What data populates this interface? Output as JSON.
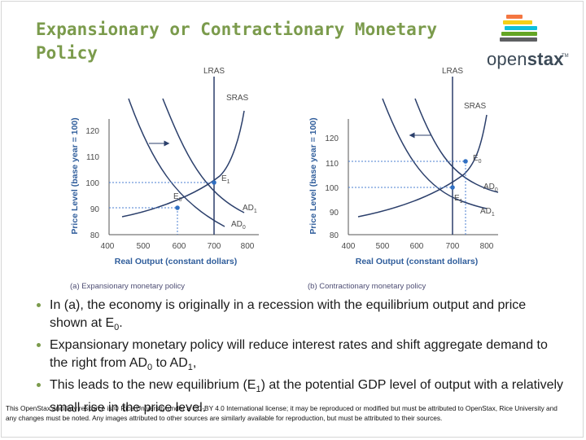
{
  "slide": {
    "title": "Expansionary or Contractionary Monetary Policy",
    "footer": "This OpenStax ancillary resource is © Rice University under a CC-BY 4.0 International license; it may be reproduced or modified but must be attributed to OpenStax, Rice University and any changes must be noted.  Any images attributed to other sources are similarly available for reproduction, but must be attributed to their sources.",
    "logo": {
      "icon": "openstax-book-stack-icon",
      "text_light": "open",
      "text_bold": "stax",
      "tm": "TM",
      "bar_colors": [
        "#f47641",
        "#f4d019",
        "#0dc0dc",
        "#63a524",
        "#5e6062"
      ]
    },
    "bullets": [
      {
        "text": "In (a), the economy is originally in a recession with the equilibrium output and price shown at E",
        "sub": "0",
        "after": "."
      },
      {
        "text": "Expansionary monetary policy will reduce interest rates and shift aggregate demand to the right from AD",
        "sub": "0",
        "mid": " to AD",
        "sub2": "1",
        "after": ","
      },
      {
        "text": "This leads to the new equilibrium (E",
        "sub": "1",
        "after": ") at the potential GDP level of output with a relatively small rise in the price level."
      }
    ],
    "bullet_color": "#7b9b4c"
  },
  "diagrams": [
    {
      "caption": "(a)  Expansionary monetary policy",
      "xlabel": "Real Output (constant dollars)",
      "ylabel": "Price Level (base year = 100)",
      "x_ticks": [
        "400",
        "500",
        "600",
        "700",
        "800"
      ],
      "y_ticks": [
        "80",
        "90",
        "100",
        "110",
        "120"
      ],
      "curves": {
        "lras": "LRAS",
        "sras": "SRAS",
        "ad0": "AD",
        "ad0_sub": "0",
        "ad1": "AD",
        "ad1_sub": "1"
      },
      "points": {
        "e0": "E",
        "e0_sub": "0",
        "e1": "E",
        "e1_sub": "1"
      },
      "arrow_direction": "right"
    },
    {
      "caption": "(b)  Contractionary monetary policy",
      "xlabel": "Real Output (constant dollars)",
      "ylabel": "Price Level (base year = 100)",
      "x_ticks": [
        "400",
        "500",
        "600",
        "700",
        "800"
      ],
      "y_ticks": [
        "80",
        "90",
        "100",
        "110",
        "120"
      ],
      "curves": {
        "lras": "LRAS",
        "sras": "SRAS",
        "ad0": "AD",
        "ad0_sub": "0",
        "ad1": "AD",
        "ad1_sub": "1"
      },
      "points": {
        "e0": "E",
        "e0_sub": "0",
        "e1": "E",
        "e1_sub": "1"
      },
      "arrow_direction": "left"
    }
  ],
  "colors": {
    "axis_title": "#2f5d9b",
    "curve": "#2b3f6b",
    "arrow": "#2b3f6b",
    "point": "#2f6fc2",
    "guide": "#4b7fd1",
    "title": "#7b9b4c"
  }
}
